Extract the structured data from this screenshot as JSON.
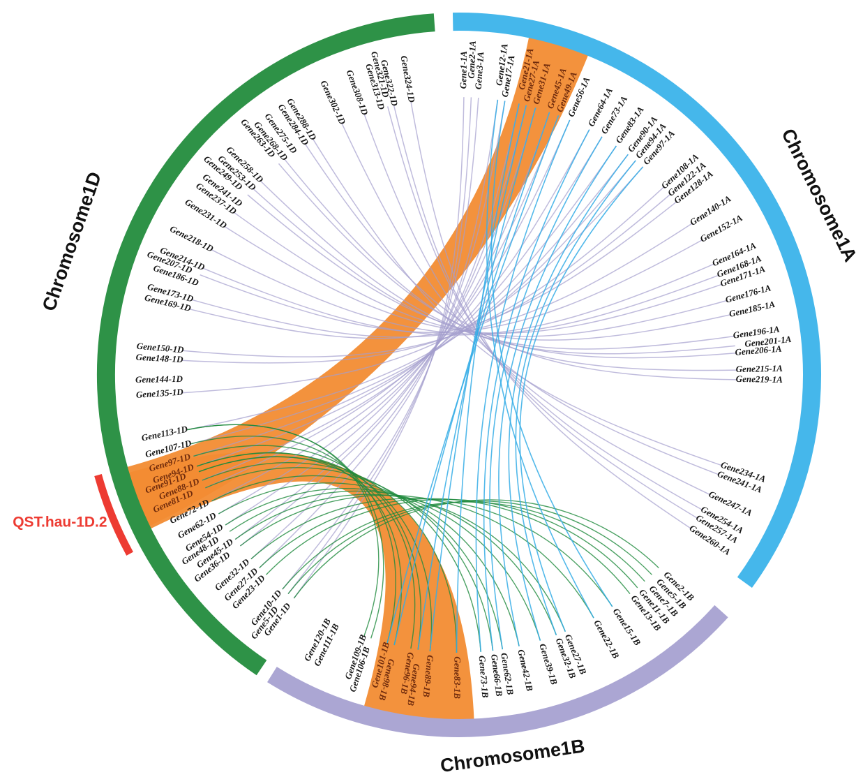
{
  "figure": {
    "type": "circos-synteny-plot",
    "colors": {
      "band_1A": "#45B7EB",
      "band_1B": "#ABA6D3",
      "band_1D": "#2E9247",
      "ribbon": "#F28C33",
      "link_AD": "#A49ECD",
      "link_AB": "#35ADE6",
      "link_DB": "#1E8A3C",
      "qtl": "#ED3B32",
      "highlight_label": "#6E2A0C",
      "label": "#151515"
    },
    "chromosomes": [
      {
        "id": "1A",
        "label": "Chromosome1A",
        "color_key": "band_1A",
        "arc_start": 91,
        "arc_end": -36,
        "name_angle": 26.5,
        "genes": [
          [
            "Gene1-1A",
            89
          ],
          [
            "Gene2-1A",
            87.5
          ],
          [
            "Gene3-1A",
            86
          ],
          [
            "Gene12-1A",
            82
          ],
          [
            "Gene17-1A",
            80.5
          ],
          [
            "Gene21-1A",
            77.5
          ],
          [
            "Gene27-1A",
            76
          ],
          [
            "Gene31-1A",
            74
          ],
          [
            "Gene45-1A",
            71
          ],
          [
            "Gene49-1A",
            69
          ],
          [
            "Gene56-1A",
            66.5
          ],
          [
            "Gene64-1A",
            62
          ],
          [
            "Gene73-1A",
            59
          ],
          [
            "Gene83-1A",
            55.5
          ],
          [
            "Gene90-1A",
            52.5
          ],
          [
            "Gene94-1A",
            50.5
          ],
          [
            "Gene97-1A",
            48.5
          ],
          [
            "Gene108-1A",
            42.5
          ],
          [
            "Gene122-1A",
            40.5
          ],
          [
            "Gene128-1A",
            38.5
          ],
          [
            "Gene140-1A",
            33
          ],
          [
            "Gene152-1A",
            29
          ],
          [
            "Gene164-1A",
            23.5
          ],
          [
            "Gene168-1A",
            21
          ],
          [
            "Gene171-1A",
            19
          ],
          [
            "Gene176-1A",
            15.5
          ],
          [
            "Gene185-1A",
            12.5
          ],
          [
            "Gene196-1A",
            8
          ],
          [
            "Gene201-1A",
            6
          ],
          [
            "Gene206-1A",
            4.5
          ],
          [
            "Gene215-1A",
            1
          ],
          [
            "Gene219-1A",
            -1
          ],
          [
            "Gene234-1A",
            -19
          ],
          [
            "Gene241-1A",
            -21
          ],
          [
            "Gene247-1A",
            -25.5
          ],
          [
            "Gene254-1A",
            -29
          ],
          [
            "Gene257-1A",
            -31
          ],
          [
            "Gene260-1A",
            -33.5
          ]
        ]
      },
      {
        "id": "1B",
        "label": "Chromosome1B",
        "color_key": "band_1B",
        "arc_start": -42,
        "arc_end": -122,
        "name_angle": -82,
        "genes": [
          [
            "Gene2-1B",
            -44
          ],
          [
            "Gene5-1B",
            -46
          ],
          [
            "Gene7-1B",
            -48
          ],
          [
            "Gene11-1B",
            -50
          ],
          [
            "Gene13-1B",
            -52
          ],
          [
            "Gene15-1B",
            -56.5
          ],
          [
            "Gene22-1B",
            -61
          ],
          [
            "Gene27-1B",
            -67.5
          ],
          [
            "Gene32-1B",
            -69.5
          ],
          [
            "Gene39-1B",
            -73
          ],
          [
            "Gene42-1B",
            -77.5
          ],
          [
            "Gene62-1B",
            -81
          ],
          [
            "Gene66-1B",
            -83
          ],
          [
            "Gene73-1B",
            -85.5
          ],
          [
            "Gene83-1B",
            -90.5
          ],
          [
            "Gene89-1B",
            -96
          ],
          [
            "Gene94-1B",
            -98.5
          ],
          [
            "Gene96-1B",
            -100
          ],
          [
            "Gene98-1B",
            -103.5
          ],
          [
            "Gene101-1B",
            -105
          ],
          [
            "Gene106-1B",
            -108.5
          ],
          [
            "Gene109-1B",
            -110
          ],
          [
            "Gene111-1B",
            -116
          ],
          [
            "Gene120-1B",
            -118
          ]
        ]
      },
      {
        "id": "1D",
        "label": "Chromosome1D",
        "color_key": "band_1D",
        "arc_start": 94,
        "arc_end": 236,
        "name_angle": 161,
        "genes": [
          [
            "Gene1-1D",
            233.5
          ],
          [
            "Gene5-1D",
            232
          ],
          [
            "Gene10-1D",
            230.5
          ],
          [
            "Gene23-1D",
            226
          ],
          [
            "Gene27-1D",
            224
          ],
          [
            "Gene32-1D",
            221.5
          ],
          [
            "Gene36-1D",
            218
          ],
          [
            "Gene45-1D",
            216.3
          ],
          [
            "Gene48-1D",
            214.3
          ],
          [
            "Gene54-1D",
            212.7
          ],
          [
            "Gene62-1D",
            210
          ],
          [
            "Gene72-1D",
            207
          ],
          [
            "Gene81-1D",
            204
          ],
          [
            "Gene88-1D",
            202.3
          ],
          [
            "Gene91-1D",
            200.4
          ],
          [
            "Gene94-1D",
            199.2
          ],
          [
            "Gene97-1D",
            197
          ],
          [
            "Gene107-1D",
            194.4
          ],
          [
            "Gene113-1D",
            191.4
          ],
          [
            "Gene135-1D",
            183.7
          ],
          [
            "Gene144-1D",
            181
          ],
          [
            "Gene148-1D",
            177
          ],
          [
            "Gene150-1D",
            175
          ],
          [
            "Gene169-1D",
            166.3
          ],
          [
            "Gene173-1D",
            164.3
          ],
          [
            "Gene186-1D",
            160.8
          ],
          [
            "Gene207-1D",
            158.9
          ],
          [
            "Gene214-1D",
            157.4
          ],
          [
            "Gene218-1D",
            153.2
          ],
          [
            "Gene231-1D",
            147.7
          ],
          [
            "Gene237-1D",
            144.2
          ],
          [
            "Gene241-1D",
            142.2
          ],
          [
            "Gene249-1D",
            139.6
          ],
          [
            "Gene253-1D",
            137.9
          ],
          [
            "Gene258-1D",
            135.7
          ],
          [
            "Gene263-1D",
            130.5
          ],
          [
            "Gene268-1D",
            129
          ],
          [
            "Gene275-1D",
            126.6
          ],
          [
            "Gene284-1D",
            123.7
          ],
          [
            "Gene288-1D",
            121.8
          ],
          [
            "Gene302-1D",
            115
          ],
          [
            "Gene308-1D",
            110
          ],
          [
            "Gene313-1D",
            106.4
          ],
          [
            "Gene321-1D",
            104.9
          ],
          [
            "Gene322-1D",
            103.6
          ],
          [
            "Gene324-1D",
            100
          ]
        ]
      }
    ],
    "highlight_genes": [
      "Gene21-1A",
      "Gene27-1A",
      "Gene31-1A",
      "Gene45-1A",
      "Gene49-1A",
      "Gene81-1D",
      "Gene88-1D",
      "Gene91-1D",
      "Gene94-1D",
      "Gene97-1D",
      "Gene83-1B",
      "Gene89-1B",
      "Gene94-1B",
      "Gene96-1B",
      "Gene98-1B",
      "Gene101-1B"
    ],
    "qtl": {
      "label": "QST.hau-1D.2",
      "arc_span": [
        195.5,
        208.5
      ]
    },
    "ribbons": [
      {
        "id": "1A-1D",
        "from_span": [
          68,
          78.3
        ],
        "to_span": [
          195.5,
          206
        ]
      },
      {
        "id": "1D-1B",
        "from_span": [
          196.5,
          206.5
        ],
        "to_span": [
          254,
          272.5
        ]
      }
    ],
    "links": {
      "AD": [
        [
          "Gene1-1A",
          "Gene1-1D"
        ],
        [
          "Gene2-1A",
          "Gene5-1D"
        ],
        [
          "Gene3-1A",
          "Gene10-1D"
        ],
        [
          "Gene12-1A",
          "Gene27-1D"
        ],
        [
          "Gene17-1A",
          "Gene32-1D"
        ],
        [
          "Gene21-1A",
          "Gene36-1D"
        ],
        [
          "Gene27-1A",
          "Gene45-1D"
        ],
        [
          "Gene31-1A",
          "Gene54-1D"
        ],
        [
          "Gene45-1A",
          "Gene62-1D"
        ],
        [
          "Gene49-1A",
          "Gene72-1D"
        ],
        [
          "Gene56-1A",
          "Gene81-1D"
        ],
        [
          "Gene64-1A",
          "Gene88-1D"
        ],
        [
          "Gene73-1A",
          "Gene94-1D"
        ],
        [
          "Gene83-1A",
          "Gene97-1D"
        ],
        [
          "Gene90-1A",
          "Gene107-1D"
        ],
        [
          "Gene94-1A",
          "Gene113-1D"
        ],
        [
          "Gene97-1A",
          "Gene135-1D"
        ],
        [
          "Gene108-1A",
          "Gene148-1D"
        ],
        [
          "Gene122-1A",
          "Gene150-1D"
        ],
        [
          "Gene128-1A",
          "Gene169-1D"
        ],
        [
          "Gene140-1A",
          "Gene173-1D"
        ],
        [
          "Gene152-1A",
          "Gene207-1D"
        ],
        [
          "Gene164-1A",
          "Gene214-1D"
        ],
        [
          "Gene168-1A",
          "Gene218-1D"
        ],
        [
          "Gene171-1A",
          "Gene231-1D"
        ],
        [
          "Gene176-1A",
          "Gene237-1D"
        ],
        [
          "Gene185-1A",
          "Gene249-1D"
        ],
        [
          "Gene196-1A",
          "Gene253-1D"
        ],
        [
          "Gene201-1A",
          "Gene258-1D"
        ],
        [
          "Gene206-1A",
          "Gene263-1D"
        ],
        [
          "Gene215-1A",
          "Gene268-1D"
        ],
        [
          "Gene219-1A",
          "Gene284-1D"
        ],
        [
          "Gene234-1A",
          "Gene288-1D"
        ],
        [
          "Gene241-1A",
          "Gene302-1D"
        ],
        [
          "Gene247-1A",
          "Gene308-1D"
        ],
        [
          "Gene254-1A",
          "Gene321-1D"
        ],
        [
          "Gene257-1A",
          "Gene322-1D"
        ],
        [
          "Gene260-1A",
          "Gene324-1D"
        ]
      ],
      "AB": [
        [
          "Gene12-1A",
          "Gene22-1B"
        ],
        [
          "Gene17-1A",
          "Gene15-1B"
        ],
        [
          "Gene21-1A",
          "Gene83-1B"
        ],
        [
          "Gene27-1A",
          "Gene89-1B"
        ],
        [
          "Gene31-1A",
          "Gene94-1B"
        ],
        [
          "Gene45-1A",
          "Gene98-1B"
        ],
        [
          "Gene49-1A",
          "Gene101-1B"
        ],
        [
          "Gene56-1A",
          "Gene73-1B"
        ],
        [
          "Gene64-1A",
          "Gene66-1B"
        ],
        [
          "Gene73-1A",
          "Gene62-1B"
        ],
        [
          "Gene83-1A",
          "Gene42-1B"
        ],
        [
          "Gene90-1A",
          "Gene39-1B"
        ],
        [
          "Gene94-1A",
          "Gene32-1B"
        ],
        [
          "Gene97-1A",
          "Gene27-1B"
        ]
      ],
      "DB": [
        [
          "Gene1-1D",
          "Gene2-1B"
        ],
        [
          "Gene5-1D",
          "Gene5-1B"
        ],
        [
          "Gene10-1D",
          "Gene7-1B"
        ],
        [
          "Gene23-1D",
          "Gene11-1B"
        ],
        [
          "Gene27-1D",
          "Gene13-1B"
        ],
        [
          "Gene32-1D",
          "Gene15-1B"
        ],
        [
          "Gene36-1D",
          "Gene22-1B"
        ],
        [
          "Gene45-1D",
          "Gene27-1B"
        ],
        [
          "Gene48-1D",
          "Gene32-1B"
        ],
        [
          "Gene54-1D",
          "Gene39-1B"
        ],
        [
          "Gene62-1D",
          "Gene42-1B"
        ],
        [
          "Gene72-1D",
          "Gene62-1B"
        ],
        [
          "Gene81-1D",
          "Gene66-1B"
        ],
        [
          "Gene88-1D",
          "Gene73-1B"
        ],
        [
          "Gene91-1D",
          "Gene83-1B"
        ],
        [
          "Gene91-1D",
          "Gene96-1B"
        ],
        [
          "Gene94-1D",
          "Gene89-1B"
        ],
        [
          "Gene94-1D",
          "Gene98-1B"
        ],
        [
          "Gene97-1D",
          "Gene94-1B"
        ],
        [
          "Gene107-1D",
          "Gene101-1B"
        ],
        [
          "Gene113-1D",
          "Gene106-1B"
        ],
        [
          "Gene113-1D",
          "Gene109-1B"
        ]
      ]
    }
  }
}
